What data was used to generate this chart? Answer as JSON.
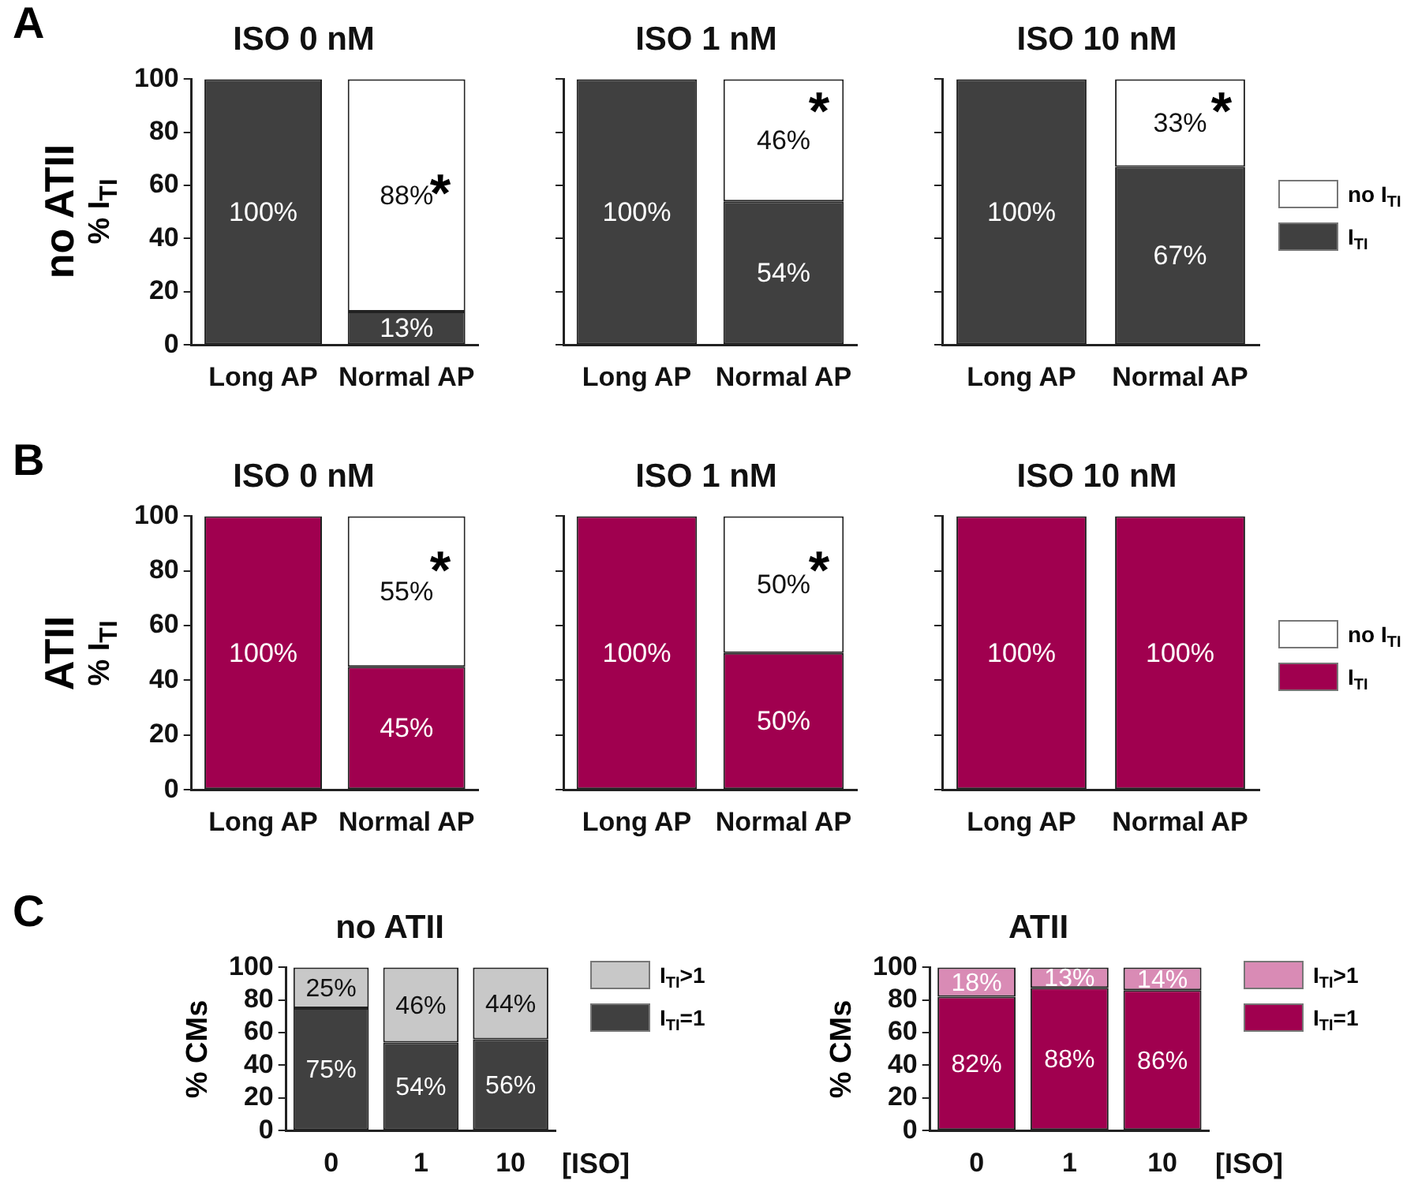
{
  "chart_data": [
    {
      "type": "bar",
      "title": "ISO 0 nM",
      "ylabel": "% I$_{TI}$",
      "annotations": [
        "A",
        "no ATII",
        "*"
      ],
      "categories": [
        "Long AP",
        "Normal AP"
      ],
      "stacked": true,
      "ylim": [
        0,
        100
      ],
      "yticks": [
        0,
        20,
        40,
        60,
        80,
        100
      ],
      "legend": false,
      "series": [
        {
          "color": "#404040",
          "values": [
            100,
            12.5
          ],
          "value_labels": [
            "100%",
            "13%"
          ]
        },
        {
          "color": "#ffffff",
          "values": [
            0,
            87.5
          ],
          "value_labels": [
            null,
            "88%"
          ]
        }
      ]
    },
    {
      "type": "bar",
      "title": "ISO 1 nM",
      "annotations": [
        "*"
      ],
      "categories": [
        "Long AP",
        "Normal AP"
      ],
      "stacked": true,
      "ylim": [
        0,
        100
      ],
      "yticks": [
        0,
        20,
        40,
        60,
        80,
        100
      ],
      "tick_labels": "x",
      "legend": false,
      "series": [
        {
          "color": "#404040",
          "values": [
            100,
            54
          ],
          "value_labels": [
            "100%",
            "54%"
          ]
        },
        {
          "color": "#ffffff",
          "values": [
            0,
            46
          ],
          "value_labels": [
            null,
            "46%"
          ]
        }
      ]
    },
    {
      "type": "bar",
      "title": "ISO 10 nM",
      "annotations": [
        "*"
      ],
      "categories": [
        "Long AP",
        "Normal AP"
      ],
      "stacked": true,
      "ylim": [
        0,
        100
      ],
      "yticks": [
        0,
        20,
        40,
        60,
        80,
        100
      ],
      "tick_labels": "x",
      "legend": "right",
      "series": [
        {
          "name": "I$_{TI}$",
          "color": "#404040",
          "values": [
            100,
            67
          ],
          "value_labels": [
            "100%",
            "67%"
          ]
        },
        {
          "name": "no I$_{TI}$",
          "color": "#ffffff",
          "values": [
            0,
            33
          ],
          "value_labels": [
            null,
            "33%"
          ]
        }
      ]
    },
    {
      "type": "bar",
      "title": "ISO 0 nM",
      "ylabel": "% I$_{TI}$",
      "annotations": [
        "B",
        "ATII",
        "*"
      ],
      "categories": [
        "Long AP",
        "Normal AP"
      ],
      "stacked": true,
      "ylim": [
        0,
        100
      ],
      "yticks": [
        0,
        20,
        40,
        60,
        80,
        100
      ],
      "legend": false,
      "series": [
        {
          "color": "#a0004f",
          "values": [
            100,
            45
          ],
          "value_labels": [
            "100%",
            "45%"
          ]
        },
        {
          "color": "#ffffff",
          "values": [
            0,
            55
          ],
          "value_labels": [
            null,
            "55%"
          ]
        }
      ]
    },
    {
      "type": "bar",
      "title": "ISO 1 nM",
      "annotations": [
        "*"
      ],
      "categories": [
        "Long AP",
        "Normal AP"
      ],
      "stacked": true,
      "ylim": [
        0,
        100
      ],
      "yticks": [
        0,
        20,
        40,
        60,
        80,
        100
      ],
      "tick_labels": "x",
      "legend": false,
      "series": [
        {
          "color": "#a0004f",
          "values": [
            100,
            50
          ],
          "value_labels": [
            "100%",
            "50%"
          ]
        },
        {
          "color": "#ffffff",
          "values": [
            0,
            50
          ],
          "value_labels": [
            null,
            "50%"
          ]
        }
      ]
    },
    {
      "type": "bar",
      "title": "ISO 10 nM",
      "categories": [
        "Long AP",
        "Normal AP"
      ],
      "stacked": true,
      "ylim": [
        0,
        100
      ],
      "yticks": [
        0,
        20,
        40,
        60,
        80,
        100
      ],
      "tick_labels": "x",
      "legend": "right",
      "series": [
        {
          "name": "I$_{TI}$",
          "color": "#a0004f",
          "values": [
            100,
            100
          ],
          "value_labels": [
            "100%",
            "100%"
          ]
        },
        {
          "name": "no I$_{TI}$",
          "color": "#ffffff",
          "values": [
            0,
            0
          ],
          "value_labels": [
            null,
            null
          ]
        }
      ]
    },
    {
      "type": "bar",
      "title": "no ATII",
      "ylabel": "% CMs",
      "xlabel": "[ISO]",
      "annotations": [
        "C"
      ],
      "categories": [
        "0",
        "1",
        "10"
      ],
      "stacked": true,
      "ylim": [
        0,
        100
      ],
      "yticks": [
        0,
        20,
        40,
        60,
        80,
        100
      ],
      "legend": "right",
      "series": [
        {
          "name": "I$_{TI}$=1",
          "color": "#404040",
          "values": [
            75,
            54,
            56
          ],
          "value_labels": [
            "75%",
            "54%",
            "56%"
          ]
        },
        {
          "name": "I$_{TI}$>1",
          "color": "#c8c8c8",
          "values": [
            25,
            46,
            44
          ],
          "value_labels": [
            "25%",
            "46%",
            "44%"
          ]
        }
      ]
    },
    {
      "type": "bar",
      "title": "ATII",
      "ylabel": "% CMs",
      "xlabel": "[ISO]",
      "categories": [
        "0",
        "1",
        "10"
      ],
      "stacked": true,
      "ylim": [
        0,
        100
      ],
      "yticks": [
        0,
        20,
        40,
        60,
        80,
        100
      ],
      "legend": "right",
      "series": [
        {
          "name": "I$_{TI}$=1",
          "color": "#a0004f",
          "values": [
            82,
            87.5,
            86
          ],
          "value_labels": [
            "82%",
            "88%",
            "86%"
          ]
        },
        {
          "name": "I$_{TI}$>1",
          "color": "#d98bb5",
          "values": [
            18,
            12.5,
            14
          ],
          "value_labels": [
            "18%",
            "13%",
            "14%"
          ]
        }
      ]
    }
  ]
}
